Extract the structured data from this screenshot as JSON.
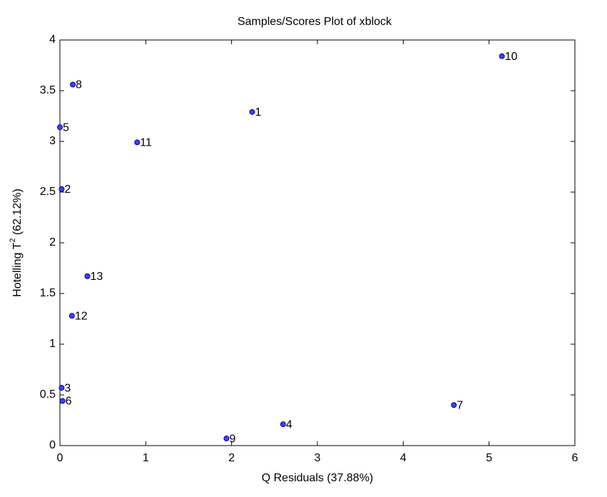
{
  "chart_data": {
    "type": "scatter",
    "title": "Samples/Scores Plot of xblock",
    "xlabel": "Q Residuals (37.88%)",
    "ylabel": "Hotelling T",
    "ylabel_sup": "2",
    "ylabel_tail": " (62.12%)",
    "x": [
      2.24,
      0.02,
      0.02,
      2.6,
      0.0,
      0.03,
      4.59,
      0.15,
      1.94,
      5.15,
      0.9,
      0.14,
      0.32
    ],
    "series": [
      {
        "color": "#4040ff",
        "values": [
          3.29,
          2.53,
          0.57,
          0.21,
          3.14,
          0.44,
          0.4,
          3.56,
          0.07,
          3.84,
          2.99,
          1.28,
          1.67
        ]
      }
    ],
    "labels": [
      "1",
      "2",
      "3",
      "4",
      "5",
      "6",
      "7",
      "8",
      "9",
      "10",
      "11",
      "12",
      "13"
    ],
    "xlim": [
      0,
      6
    ],
    "xticks": [
      0,
      1,
      2,
      3,
      4,
      5,
      6
    ],
    "ylim": [
      0,
      4
    ],
    "yticks": [
      0,
      0.5,
      1,
      1.5,
      2,
      2.5,
      3,
      3.5,
      4
    ],
    "grid": false
  }
}
